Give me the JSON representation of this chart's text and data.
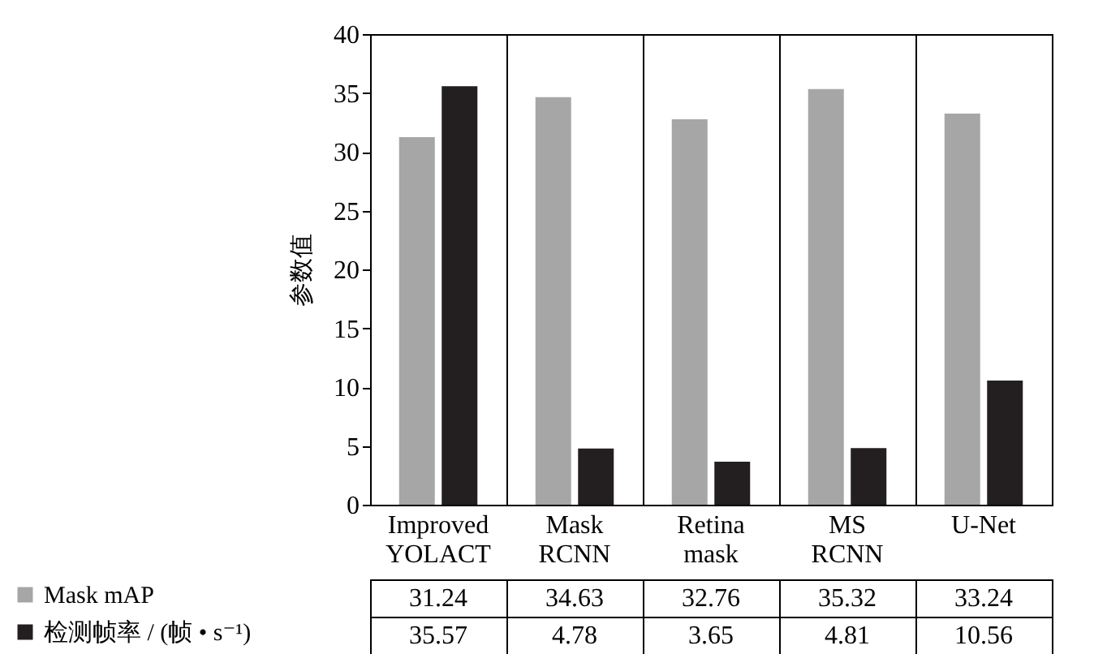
{
  "chart_data": {
    "type": "bar",
    "ylabel": "参数值",
    "categories": [
      "Improved YOLACT",
      "Mask RCNN",
      "Retina mask",
      "MS RCNN",
      "U-Net"
    ],
    "series": [
      {
        "name": "Mask mAP",
        "color": "#a6a6a6",
        "values": [
          31.24,
          34.63,
          32.76,
          35.32,
          33.24
        ]
      },
      {
        "name": "检测帧率 / (帧 • s⁻¹)",
        "color": "#231f20",
        "values": [
          35.57,
          4.78,
          3.65,
          4.81,
          10.56
        ]
      }
    ],
    "ylim": [
      0,
      40
    ],
    "yticks": [
      0,
      5,
      10,
      15,
      20,
      25,
      30,
      35,
      40
    ],
    "grid": "x",
    "legend": "bottom left",
    "data_labels": true
  }
}
